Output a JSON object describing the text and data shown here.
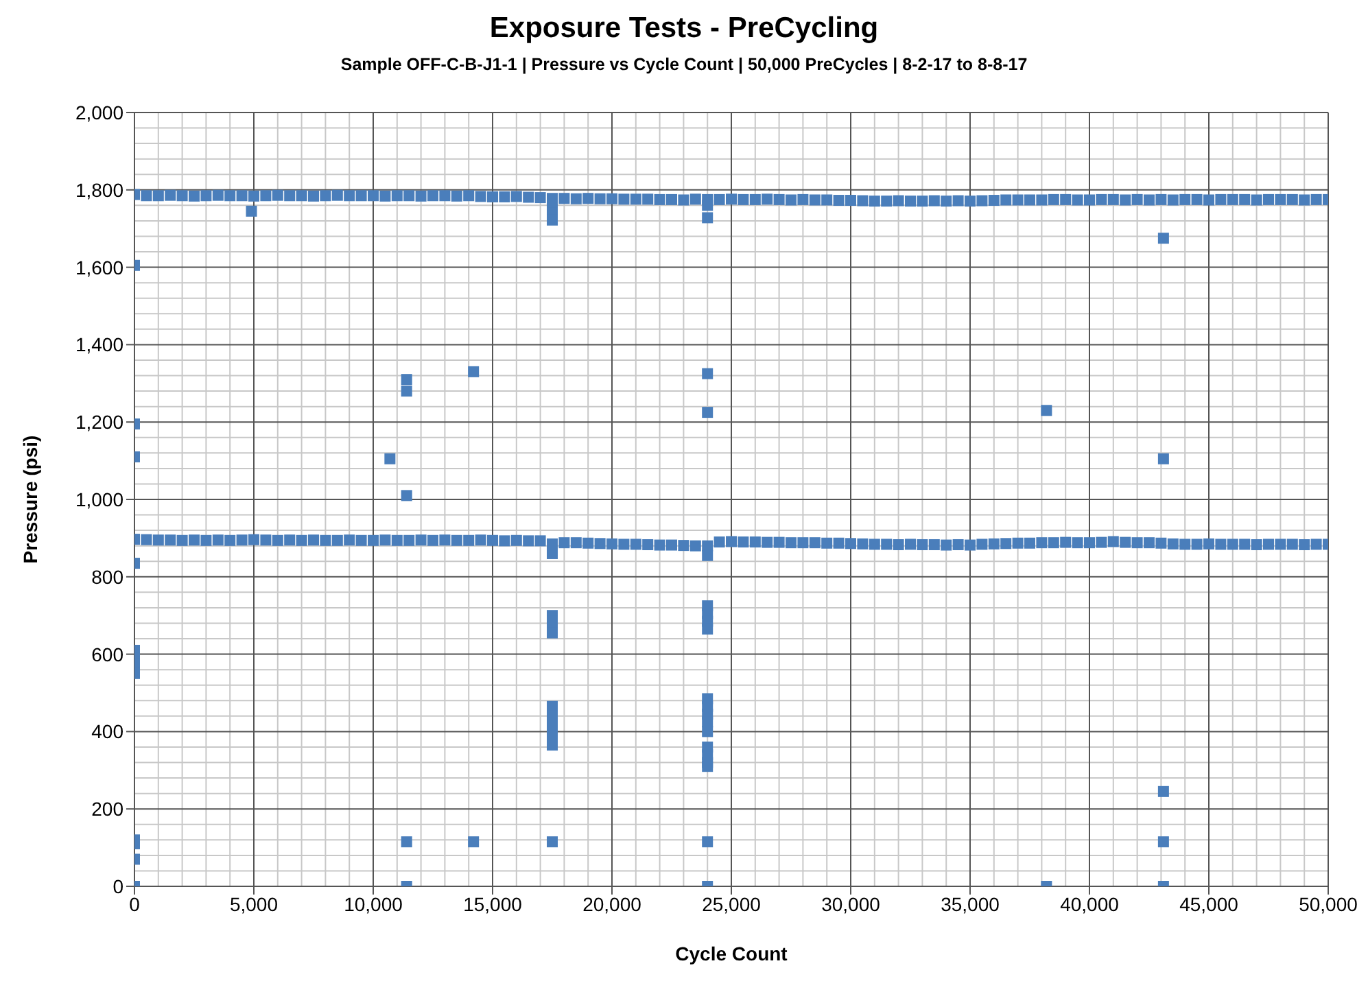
{
  "chart_data": {
    "type": "scatter",
    "title": "Exposure Tests - PreCycling",
    "subtitle": "Sample OFF-C-B-J1-1 | Pressure vs Cycle Count | 50,000 PreCycles | 8-2-17 to 8-8-17",
    "xlabel": "Cycle Count",
    "ylabel": "Pressure (psi)",
    "xlim": [
      0,
      50000
    ],
    "xticks": [
      {
        "value": 0,
        "label": "0"
      },
      {
        "value": 5000,
        "label": "5,000"
      },
      {
        "value": 10000,
        "label": "10,000"
      },
      {
        "value": 15000,
        "label": "15,000"
      },
      {
        "value": 20000,
        "label": "20,000"
      },
      {
        "value": 25000,
        "label": "25,000"
      },
      {
        "value": 30000,
        "label": "30,000"
      },
      {
        "value": 35000,
        "label": "35,000"
      },
      {
        "value": 40000,
        "label": "40,000"
      },
      {
        "value": 45000,
        "label": "45,000"
      },
      {
        "value": 50000,
        "label": "50,000"
      }
    ],
    "ylim": [
      0,
      2000
    ],
    "yticks": [
      {
        "value": 0,
        "label": "0"
      },
      {
        "value": 200,
        "label": "200"
      },
      {
        "value": 400,
        "label": "400"
      },
      {
        "value": 600,
        "label": "600"
      },
      {
        "value": 800,
        "label": "800"
      },
      {
        "value": 1000,
        "label": "1,000"
      },
      {
        "value": 1200,
        "label": "1,200"
      },
      {
        "value": 1400,
        "label": "1,400"
      },
      {
        "value": 1600,
        "label": "1,600"
      },
      {
        "value": 1800,
        "label": "1,800"
      },
      {
        "value": 2000,
        "label": "2,000"
      }
    ],
    "grid": true,
    "marker": "square",
    "legend": false,
    "series": [
      {
        "color": "#4a7ebb",
        "x": [
          0,
          500,
          1000,
          1500,
          2000,
          2500,
          3000,
          3500,
          4000,
          4500,
          5000,
          5500,
          6000,
          6500,
          7000,
          7500,
          8000,
          8500,
          9000,
          9500,
          10000,
          10500,
          11000,
          11500,
          12000,
          12500,
          13000,
          13500,
          14000,
          14500,
          15000,
          15500,
          16000,
          16500,
          17000,
          17500,
          18000,
          18500,
          19000,
          19500,
          20000,
          20500,
          21000,
          21500,
          22000,
          22500,
          23000,
          23500,
          24000,
          24500,
          25000,
          25500,
          26000,
          26500,
          27000,
          27500,
          28000,
          28500,
          29000,
          29500,
          30000,
          30500,
          31000,
          31500,
          32000,
          32500,
          33000,
          33500,
          34000,
          34500,
          35000,
          35500,
          36000,
          36500,
          37000,
          37500,
          38000,
          38500,
          39000,
          39500,
          40000,
          40500,
          41000,
          41500,
          42000,
          42500,
          43000,
          43500,
          44000,
          44500,
          45000,
          45500,
          46000,
          46500,
          47000,
          47500,
          48000,
          48500,
          49000,
          49500,
          50000
        ],
        "values": [
          1788,
          1785,
          1785,
          1786,
          1785,
          1784,
          1785,
          1786,
          1785,
          1785,
          1784,
          1785,
          1786,
          1785,
          1785,
          1784,
          1785,
          1786,
          1785,
          1785,
          1785,
          1784,
          1785,
          1785,
          1784,
          1785,
          1785,
          1784,
          1785,
          1783,
          1782,
          1782,
          1783,
          1781,
          1780,
          1778,
          1778,
          1777,
          1778,
          1777,
          1777,
          1776,
          1776,
          1776,
          1775,
          1775,
          1774,
          1776,
          1775,
          1775,
          1776,
          1775,
          1775,
          1776,
          1775,
          1774,
          1775,
          1774,
          1774,
          1773,
          1773,
          1772,
          1771,
          1771,
          1772,
          1771,
          1771,
          1772,
          1771,
          1772,
          1771,
          1772,
          1773,
          1774,
          1774,
          1774,
          1774,
          1775,
          1775,
          1774,
          1774,
          1775,
          1775,
          1774,
          1775,
          1774,
          1775,
          1774,
          1775,
          1775,
          1774,
          1775,
          1775,
          1775,
          1774,
          1775,
          1775,
          1775,
          1774,
          1775,
          1775
        ]
      },
      {
        "color": "#4a7ebb",
        "x": [
          0,
          500,
          1000,
          1500,
          2000,
          2500,
          3000,
          3500,
          4000,
          4500,
          5000,
          5500,
          6000,
          6500,
          7000,
          7500,
          8000,
          8500,
          9000,
          9500,
          10000,
          10500,
          11000,
          11500,
          12000,
          12500,
          13000,
          13500,
          14000,
          14500,
          15000,
          15500,
          16000,
          16500,
          17000,
          17500,
          18000,
          18500,
          19000,
          19500,
          20000,
          20500,
          21000,
          21500,
          22000,
          22500,
          23000,
          23500,
          24000,
          24500,
          25000,
          25500,
          26000,
          26500,
          27000,
          27500,
          28000,
          28500,
          29000,
          29500,
          30000,
          30500,
          31000,
          31500,
          32000,
          32500,
          33000,
          33500,
          34000,
          34500,
          35000,
          35500,
          36000,
          36500,
          37000,
          37500,
          38000,
          38500,
          39000,
          39500,
          40000,
          40500,
          41000,
          41500,
          42000,
          42500,
          43000,
          43500,
          44000,
          44500,
          45000,
          45500,
          46000,
          46500,
          47000,
          47500,
          48000,
          48500,
          49000,
          49500,
          50000
        ],
        "values": [
          897,
          896,
          895,
          895,
          894,
          895,
          894,
          895,
          894,
          895,
          896,
          895,
          894,
          895,
          894,
          895,
          894,
          894,
          895,
          894,
          894,
          895,
          894,
          894,
          895,
          894,
          895,
          894,
          894,
          895,
          894,
          893,
          894,
          893,
          893,
          885,
          888,
          888,
          887,
          886,
          885,
          884,
          884,
          883,
          882,
          882,
          881,
          880,
          880,
          890,
          891,
          890,
          890,
          889,
          889,
          888,
          888,
          888,
          887,
          887,
          886,
          885,
          884,
          884,
          883,
          884,
          883,
          883,
          882,
          883,
          882,
          884,
          885,
          886,
          887,
          887,
          888,
          888,
          889,
          888,
          888,
          889,
          891,
          889,
          888,
          888,
          887,
          885,
          884,
          884,
          885,
          884,
          884,
          884,
          883,
          884,
          884,
          884,
          883,
          884,
          884
        ]
      },
      {
        "color": "#4a7ebb",
        "x": [
          0,
          0,
          0,
          0,
          0,
          0,
          0,
          0,
          0,
          0,
          0,
          0,
          4900,
          10700,
          11400,
          11400,
          11400,
          11400,
          11400,
          14200,
          14200,
          17500,
          17500,
          17500,
          17500,
          17500,
          17500,
          17500,
          17500,
          17500,
          17500,
          17500,
          17500,
          17500,
          17500,
          24000,
          24000,
          24000,
          24000,
          24000,
          24000,
          24000,
          24000,
          24000,
          24000,
          24000,
          24000,
          24000,
          24000,
          24000,
          24000,
          24000,
          24000,
          24000,
          24000,
          38200,
          38200,
          43100,
          43100,
          43100,
          43100,
          43100
        ],
        "values": [
          1605,
          1195,
          1110,
          835,
          610,
          590,
          575,
          550,
          120,
          110,
          70,
          0,
          1745,
          1105,
          1310,
          1280,
          1010,
          115,
          0,
          1330,
          115,
          1760,
          1740,
          1722,
          860,
          700,
          685,
          670,
          655,
          465,
          440,
          415,
          390,
          365,
          115,
          1760,
          1728,
          855,
          1325,
          1225,
          725,
          705,
          685,
          665,
          485,
          465,
          445,
          425,
          400,
          360,
          340,
          320,
          310,
          115,
          0,
          1230,
          0,
          1675,
          1105,
          245,
          115,
          0
        ]
      }
    ]
  }
}
